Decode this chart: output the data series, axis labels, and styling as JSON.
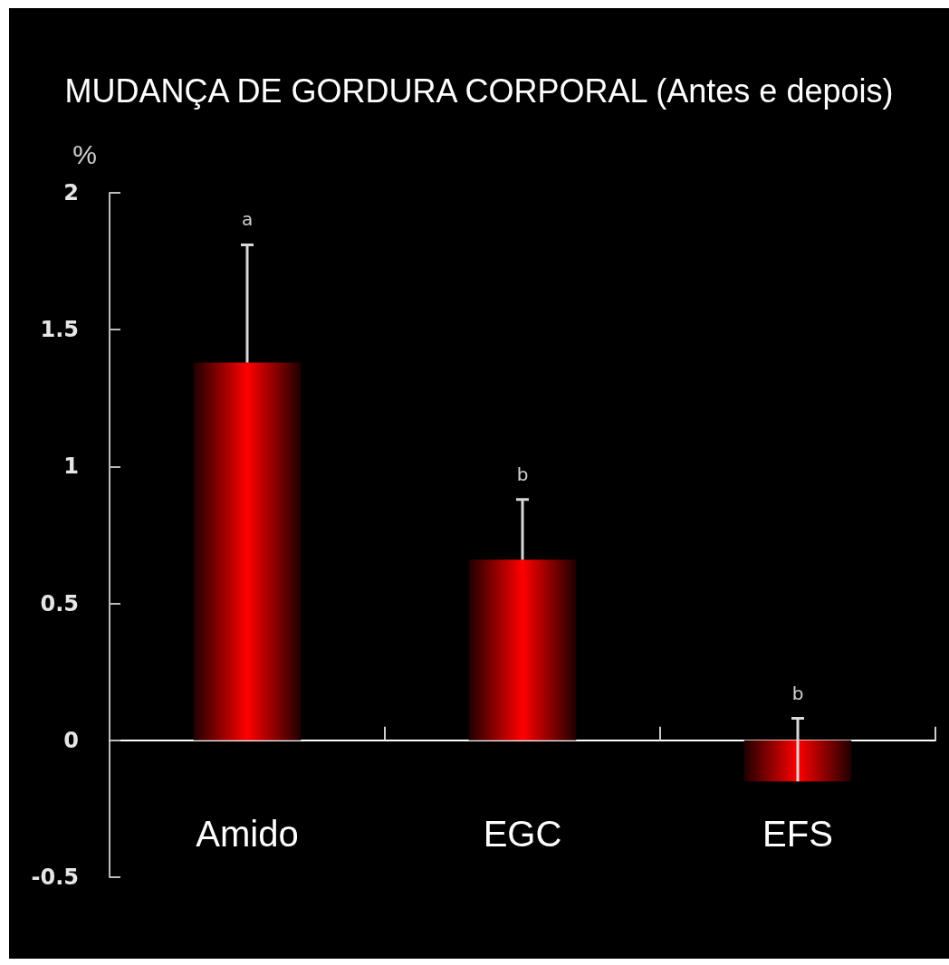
{
  "chart_data": {
    "type": "bar",
    "title": "MUDANÇA DE GORDURA CORPORAL (Antes e depois)",
    "ylabel": "%",
    "categories": [
      "Amido",
      "EGC",
      "EFS"
    ],
    "values": [
      1.38,
      0.66,
      -0.15
    ],
    "errors": [
      [
        1.38,
        1.81
      ],
      [
        0.66,
        0.88
      ],
      [
        -0.15,
        0.08
      ]
    ],
    "color": "#ff0000",
    "ylim": [
      -0.5,
      2
    ],
    "yticks": [
      -0.5,
      0,
      0.5,
      1,
      1.5,
      2
    ],
    "annotations": [
      "a",
      "b",
      "b"
    ]
  }
}
